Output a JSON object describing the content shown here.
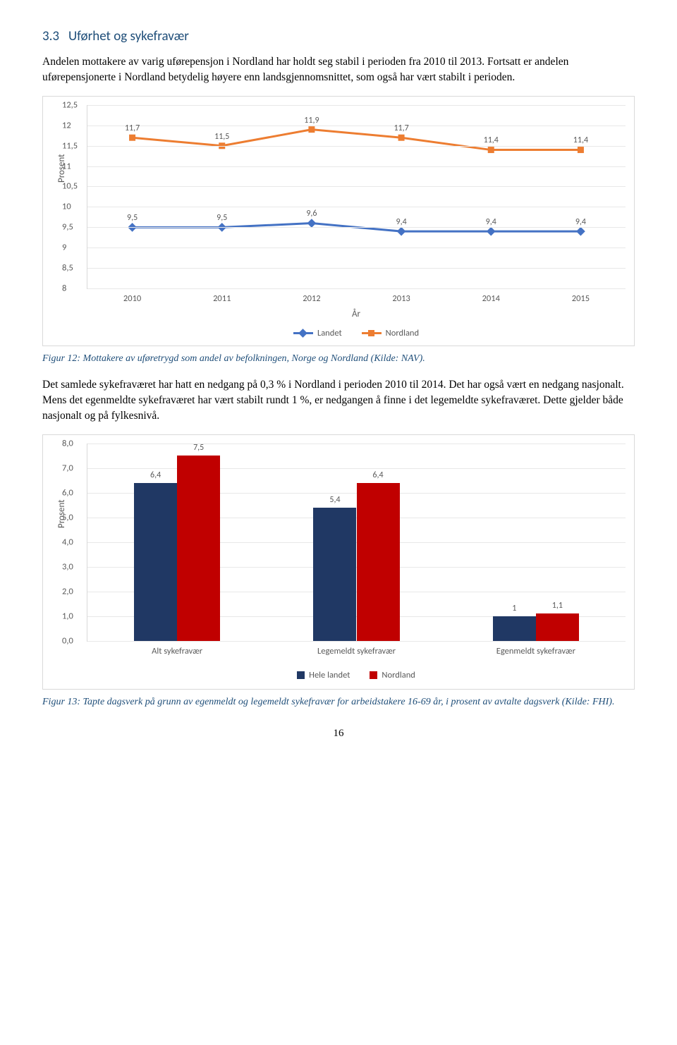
{
  "section": {
    "number": "3.3",
    "title": "Uførhet og sykefravær"
  },
  "para1": "Andelen mottakere av varig uførepensjon i Nordland har holdt seg stabil i perioden fra 2010 til 2013. Fortsatt er andelen uførepensjonerte i Nordland betydelig høyere enn landsgjennomsnittet, som også har vært stabilt i perioden.",
  "figure12_caption": "Figur 12: Mottakere av uføretrygd som andel av befolkningen, Norge og Nordland (Kilde: NAV).",
  "para2": "Det samlede sykefraværet har hatt en nedgang på 0,3 % i Nordland i perioden 2010 til 2014. Det har også vært en nedgang nasjonalt. Mens det egenmeldte sykefraværet har vært stabilt rundt 1 %, er nedgangen å finne i det legemeldte sykefraværet. Dette gjelder både nasjonalt og på fylkesnivå.",
  "figure13_caption": "Figur 13: Tapte dagsverk på grunn av egenmeldt og legemeldt sykefravær for arbeidstakere 16-69 år, i prosent av avtalte dagsverk (Kilde: FHI).",
  "page_number": "16",
  "line_chart": {
    "type": "line",
    "ylabel": "Prosent",
    "xlabel": "År",
    "x_categories": [
      "2010",
      "2011",
      "2012",
      "2013",
      "2014",
      "2015"
    ],
    "ylim": [
      8,
      12.5
    ],
    "ytick_step": 0.5,
    "grid_color": "#e8e8e8",
    "background_color": "#ffffff",
    "series": [
      {
        "name": "Landet",
        "color": "#4472c4",
        "values": [
          9.5,
          9.5,
          9.6,
          9.4,
          9.4,
          9.4
        ],
        "marker": "diamond"
      },
      {
        "name": "Nordland",
        "color": "#ed7d31",
        "values": [
          11.7,
          11.5,
          11.9,
          11.7,
          11.4,
          11.4
        ],
        "marker": "square"
      }
    ],
    "label_fontsize": 12
  },
  "bar_chart": {
    "type": "bar",
    "ylabel": "Prosent",
    "x_categories": [
      "Alt sykefravær",
      "Legemeldt sykefravær",
      "Egenmeldt sykefravær"
    ],
    "ylim": [
      0,
      8
    ],
    "ytick_step": 1.0,
    "grid_color": "#e8e8e8",
    "background_color": "#ffffff",
    "bar_width_pct": 10,
    "series": [
      {
        "name": "Hele landet",
        "color": "#203864",
        "values": [
          6.4,
          5.4,
          1.0
        ]
      },
      {
        "name": "Nordland",
        "color": "#c00000",
        "values": [
          7.5,
          6.4,
          1.1
        ]
      }
    ],
    "label_fontsize": 12
  }
}
